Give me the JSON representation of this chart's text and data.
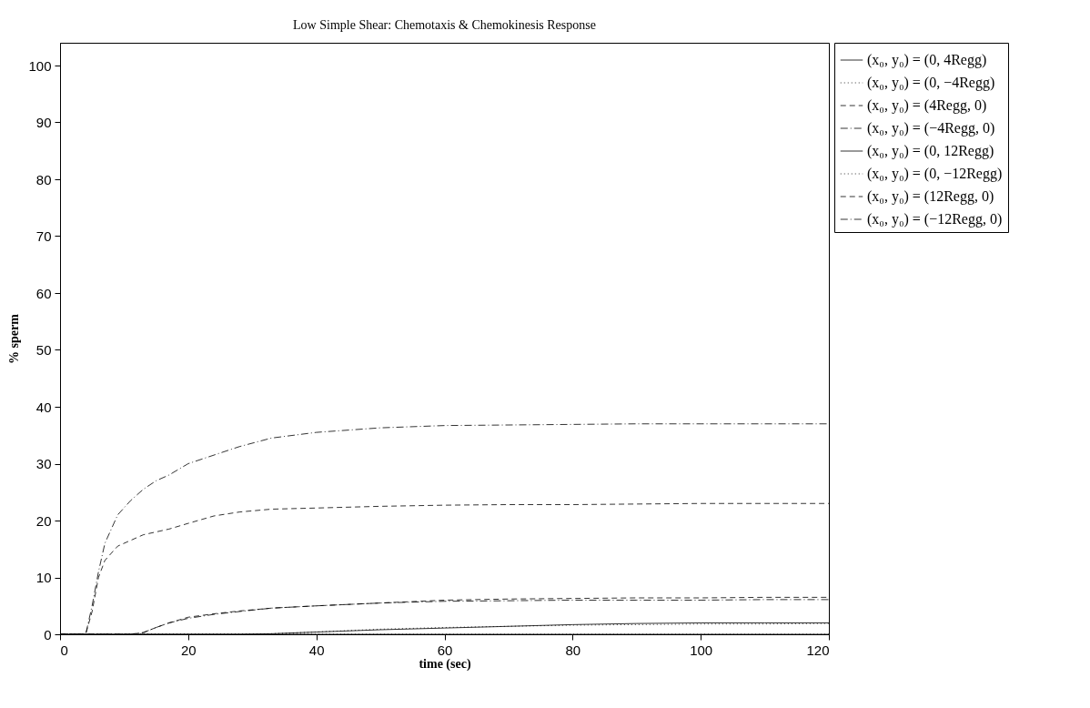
{
  "chart_data": {
    "type": "line",
    "title": "Low Simple Shear: Chemotaxis & Chemokinesis Response",
    "xlabel": "time (sec)",
    "ylabel": "% sperm",
    "x": [
      0,
      2,
      4,
      5,
      6,
      7,
      9,
      11,
      13,
      15,
      17,
      20,
      24,
      28,
      33,
      40,
      50,
      60,
      70,
      80,
      90,
      100,
      110,
      120
    ],
    "series": [
      {
        "name": "(x₀, y₀) = (0, 4Regg)",
        "color": "#000000",
        "line_style": "solid",
        "values": [
          0,
          0,
          0,
          0,
          0,
          0,
          0,
          0,
          0,
          0,
          0,
          0,
          0,
          0,
          0.1,
          0.4,
          0.8,
          1.1,
          1.4,
          1.7,
          1.9,
          2,
          2,
          2
        ]
      },
      {
        "name": "(x₀, y₀) = (0, −4Regg)",
        "color": "#000000",
        "line_style": "dotted",
        "values": [
          0,
          0,
          0,
          0,
          0,
          0,
          0,
          0,
          0,
          0,
          0,
          0,
          0,
          0,
          0.1,
          0.4,
          0.9,
          1.2,
          1.4,
          1.6,
          1.7,
          1.8,
          1.8,
          1.9
        ]
      },
      {
        "name": "(x₀, y₀) = (4Regg, 0)",
        "color": "#000000",
        "line_style": "dashed",
        "values": [
          0,
          0,
          0,
          4,
          10,
          13,
          15.5,
          16.5,
          17.5,
          18,
          18.5,
          19.5,
          20.8,
          21.5,
          22,
          22.2,
          22.5,
          22.7,
          22.8,
          22.8,
          22.9,
          23,
          23,
          23
        ]
      },
      {
        "name": "(x₀, y₀) = (−4Regg, 0)",
        "color": "#000000",
        "line_style": "dashdot",
        "values": [
          0,
          0,
          0,
          5,
          11,
          16,
          21,
          23.5,
          25.5,
          27,
          28,
          30,
          31.5,
          33,
          34.5,
          35.5,
          36.3,
          36.7,
          36.8,
          36.9,
          37,
          37,
          37,
          37
        ]
      },
      {
        "name": "(x₀, y₀) = (0, 12Regg)",
        "color": "#000000",
        "line_style": "solid",
        "values": [
          0,
          0,
          0,
          0,
          0,
          0,
          0,
          0,
          0,
          0,
          0,
          0,
          0,
          0,
          0,
          0,
          0,
          0,
          0,
          0,
          0,
          0,
          0,
          0
        ]
      },
      {
        "name": "(x₀, y₀) = (0, −12Regg)",
        "color": "#000000",
        "line_style": "dotted",
        "values": [
          0,
          0,
          0,
          0,
          0,
          0,
          0,
          0,
          0,
          0,
          0,
          0,
          0,
          0,
          0,
          0,
          0,
          0,
          0,
          0,
          0,
          0,
          0,
          0
        ]
      },
      {
        "name": "(x₀, y₀) = (12Regg, 0)",
        "color": "#000000",
        "line_style": "dashed",
        "values": [
          0,
          0,
          0,
          0,
          0,
          0,
          0,
          0,
          0.3,
          1.2,
          2,
          3,
          3.6,
          4.1,
          4.6,
          5,
          5.5,
          6,
          6.2,
          6.3,
          6.4,
          6.4,
          6.5,
          6.5
        ]
      },
      {
        "name": "(x₀, y₀) = (−12Regg, 0)",
        "color": "#000000",
        "line_style": "dashdot",
        "values": [
          0,
          0,
          0,
          0,
          0,
          0,
          0,
          0,
          0.3,
          1.2,
          2,
          2.8,
          3.5,
          4,
          4.6,
          5,
          5.5,
          5.8,
          5.9,
          6,
          6,
          6,
          6.1,
          6.1
        ]
      }
    ],
    "xlim": [
      0,
      120
    ],
    "xticks": [
      0,
      20,
      40,
      60,
      80,
      100,
      120
    ],
    "ylim": [
      0,
      104
    ],
    "yticks": [
      0,
      10,
      20,
      30,
      40,
      50,
      60,
      70,
      80,
      90,
      100
    ],
    "grid": false,
    "legend": "top right",
    "marker": "none"
  }
}
